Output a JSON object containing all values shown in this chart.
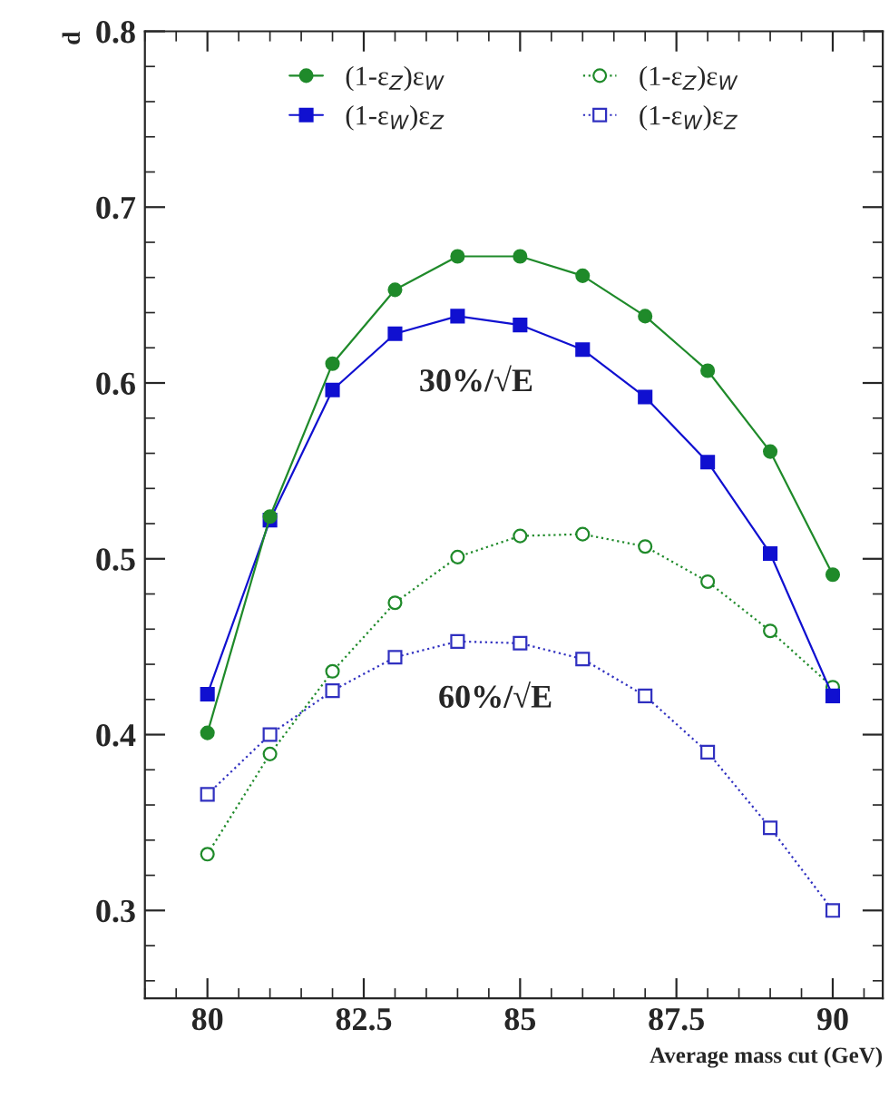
{
  "chart_data": {
    "type": "line",
    "xlabel": "Average mass cut (GeV)",
    "ylabel": "d",
    "x": [
      80,
      81,
      82,
      83,
      84,
      85,
      86,
      87,
      88,
      89,
      90
    ],
    "xlim": [
      79,
      90.8
    ],
    "xticks": [
      80,
      82.5,
      85,
      87.5,
      90
    ],
    "ylim": [
      0.25,
      0.8
    ],
    "yticks": [
      0.3,
      0.4,
      0.5,
      0.6,
      0.7,
      0.8
    ],
    "legend": "top",
    "grid": false,
    "series": [
      {
        "name": "(1-ε$_{Z}$)ε$_{W}$",
        "color": "#1f8a2a",
        "marker": "circle",
        "line_style": "solid",
        "values": [
          0.401,
          0.524,
          0.611,
          0.653,
          0.672,
          0.672,
          0.661,
          0.638,
          0.607,
          0.561,
          0.491
        ]
      },
      {
        "name": "(1-ε$_{W}$)ε$_{Z}$",
        "color": "#1010d0",
        "marker": "square",
        "line_style": "solid",
        "values": [
          0.423,
          0.522,
          0.596,
          0.628,
          0.638,
          0.633,
          0.619,
          0.592,
          0.555,
          0.503,
          0.422
        ]
      },
      {
        "name": "(1-ε$_{Z}$)ε$_{W}$",
        "color": "#1f8a2a",
        "marker": "circle",
        "line_style": "dotted",
        "values": [
          0.332,
          0.389,
          0.436,
          0.475,
          0.501,
          0.513,
          0.514,
          0.507,
          0.487,
          0.459,
          0.427
        ]
      },
      {
        "name": "(1-ε$_{W}$)ε$_{Z}$",
        "color": "#3030c0",
        "marker": "square",
        "line_style": "dotted",
        "values": [
          0.366,
          0.4,
          0.425,
          0.444,
          0.453,
          0.452,
          0.443,
          0.422,
          0.39,
          0.347,
          0.3
        ]
      }
    ],
    "annotations": [
      "30%/√E",
      "60%/√E"
    ]
  }
}
